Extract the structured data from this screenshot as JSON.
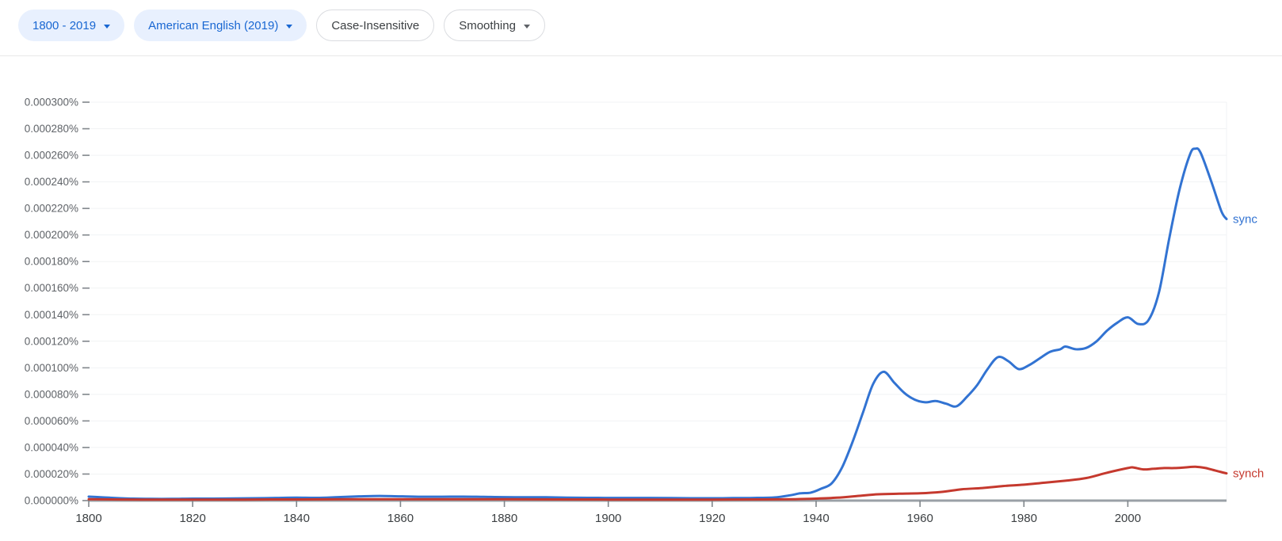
{
  "toolbar": {
    "chips": [
      {
        "id": "year-range",
        "label": "1800 - 2019",
        "caret": true
      },
      {
        "id": "corpus",
        "label": "American English (2019)",
        "caret": true
      },
      {
        "id": "case",
        "label": "Case-Insensitive",
        "caret": false
      },
      {
        "id": "smoothing",
        "label": "Smoothing",
        "caret": true
      }
    ]
  },
  "colors": {
    "chip_filled_bg": "#e8f0fe",
    "chip_filled_text": "#1967d2",
    "chip_outline_border": "#dadce0",
    "chip_outline_text": "#3c4043",
    "grid": "#f1f3f4",
    "axis": "#9aa0a6",
    "tick": "#80868b",
    "y_label": "#5f6368",
    "x_label": "#3c4043",
    "series_sync": "#3273d2",
    "series_synch": "#c5392e"
  },
  "chart_data": {
    "type": "line",
    "title": "",
    "xlabel": "",
    "ylabel": "",
    "grid": "horizontal",
    "legend_position": "line-end-labels",
    "xlim": [
      1800,
      2019
    ],
    "y_unit": "percent x 1e-6",
    "y_max": 300,
    "ylim_percent": [
      0,
      0.0003
    ],
    "x_tick_years": [
      1800,
      1820,
      1840,
      1860,
      1880,
      1900,
      1920,
      1940,
      1960,
      1980,
      2000
    ],
    "x_tick_labels": [
      "1800",
      "1820",
      "1840",
      "1860",
      "1880",
      "1900",
      "1920",
      "1940",
      "1960",
      "1980",
      "2000"
    ],
    "y_tick_step": 20,
    "y_tick_labels": [
      "0.000000%",
      "0.000020%",
      "0.000040%",
      "0.000060%",
      "0.000080%",
      "0.000100%",
      "0.000120%",
      "0.000140%",
      "0.000160%",
      "0.000180%",
      "0.000200%",
      "0.000220%",
      "0.000240%",
      "0.000260%",
      "0.000280%",
      "0.000300%"
    ],
    "series": [
      {
        "name": "sync",
        "label": "sync",
        "color": "#3273d2",
        "points": [
          [
            1800,
            3
          ],
          [
            1802,
            2.6
          ],
          [
            1804,
            2.2
          ],
          [
            1806,
            1.8
          ],
          [
            1808,
            1.5
          ],
          [
            1812,
            1.3
          ],
          [
            1816,
            1.3
          ],
          [
            1820,
            1.5
          ],
          [
            1824,
            1.5
          ],
          [
            1828,
            1.6
          ],
          [
            1832,
            1.8
          ],
          [
            1836,
            2
          ],
          [
            1840,
            2.2
          ],
          [
            1844,
            2.1
          ],
          [
            1848,
            2.6
          ],
          [
            1852,
            3.2
          ],
          [
            1856,
            3.5
          ],
          [
            1860,
            3.2
          ],
          [
            1864,
            2.9
          ],
          [
            1868,
            2.9
          ],
          [
            1872,
            3
          ],
          [
            1876,
            2.8
          ],
          [
            1880,
            2.6
          ],
          [
            1884,
            2.5
          ],
          [
            1888,
            2.5
          ],
          [
            1892,
            2.2
          ],
          [
            1896,
            2.1
          ],
          [
            1900,
            2
          ],
          [
            1904,
            2
          ],
          [
            1908,
            2
          ],
          [
            1912,
            1.9
          ],
          [
            1916,
            1.8
          ],
          [
            1920,
            1.8
          ],
          [
            1924,
            1.9
          ],
          [
            1928,
            2
          ],
          [
            1932,
            2.4
          ],
          [
            1935,
            4
          ],
          [
            1937,
            5.5
          ],
          [
            1939,
            6
          ],
          [
            1941,
            9
          ],
          [
            1943,
            13
          ],
          [
            1945,
            25
          ],
          [
            1947,
            44
          ],
          [
            1949,
            66
          ],
          [
            1951,
            88
          ],
          [
            1953,
            97
          ],
          [
            1955,
            89
          ],
          [
            1957,
            81
          ],
          [
            1959,
            76
          ],
          [
            1961,
            74
          ],
          [
            1963,
            75
          ],
          [
            1965,
            73
          ],
          [
            1967,
            71
          ],
          [
            1969,
            78
          ],
          [
            1971,
            87
          ],
          [
            1973,
            99
          ],
          [
            1975,
            108
          ],
          [
            1977,
            105
          ],
          [
            1979,
            99
          ],
          [
            1981,
            102
          ],
          [
            1983,
            107
          ],
          [
            1985,
            112
          ],
          [
            1987,
            114
          ],
          [
            1988,
            116
          ],
          [
            1990,
            114
          ],
          [
            1992,
            115
          ],
          [
            1994,
            120
          ],
          [
            1996,
            128
          ],
          [
            1998,
            134
          ],
          [
            2000,
            138
          ],
          [
            2002,
            133
          ],
          [
            2004,
            136
          ],
          [
            2006,
            157
          ],
          [
            2008,
            198
          ],
          [
            2010,
            235
          ],
          [
            2012,
            261
          ],
          [
            2013,
            265
          ],
          [
            2014,
            262
          ],
          [
            2016,
            241
          ],
          [
            2018,
            218
          ],
          [
            2019,
            212
          ]
        ]
      },
      {
        "name": "synch",
        "label": "synch",
        "color": "#c5392e",
        "points": [
          [
            1800,
            1
          ],
          [
            1810,
            0.8
          ],
          [
            1820,
            0.8
          ],
          [
            1830,
            0.8
          ],
          [
            1840,
            0.9
          ],
          [
            1850,
            1
          ],
          [
            1860,
            1
          ],
          [
            1870,
            1
          ],
          [
            1880,
            1
          ],
          [
            1890,
            0.9
          ],
          [
            1900,
            0.8
          ],
          [
            1910,
            0.8
          ],
          [
            1920,
            0.8
          ],
          [
            1930,
            0.9
          ],
          [
            1936,
            1.1
          ],
          [
            1940,
            1.5
          ],
          [
            1944,
            2.2
          ],
          [
            1948,
            3.5
          ],
          [
            1952,
            4.8
          ],
          [
            1956,
            5.2
          ],
          [
            1960,
            5.5
          ],
          [
            1964,
            6.5
          ],
          [
            1968,
            8.5
          ],
          [
            1972,
            9.5
          ],
          [
            1976,
            11
          ],
          [
            1980,
            12
          ],
          [
            1984,
            13.5
          ],
          [
            1988,
            15
          ],
          [
            1992,
            17
          ],
          [
            1996,
            21
          ],
          [
            2000,
            24.5
          ],
          [
            2001,
            25
          ],
          [
            2003,
            23.5
          ],
          [
            2005,
            24
          ],
          [
            2007,
            24.5
          ],
          [
            2009,
            24.5
          ],
          [
            2011,
            25
          ],
          [
            2013,
            25.5
          ],
          [
            2015,
            24.5
          ],
          [
            2017,
            22.5
          ],
          [
            2019,
            20.5
          ]
        ]
      }
    ]
  }
}
